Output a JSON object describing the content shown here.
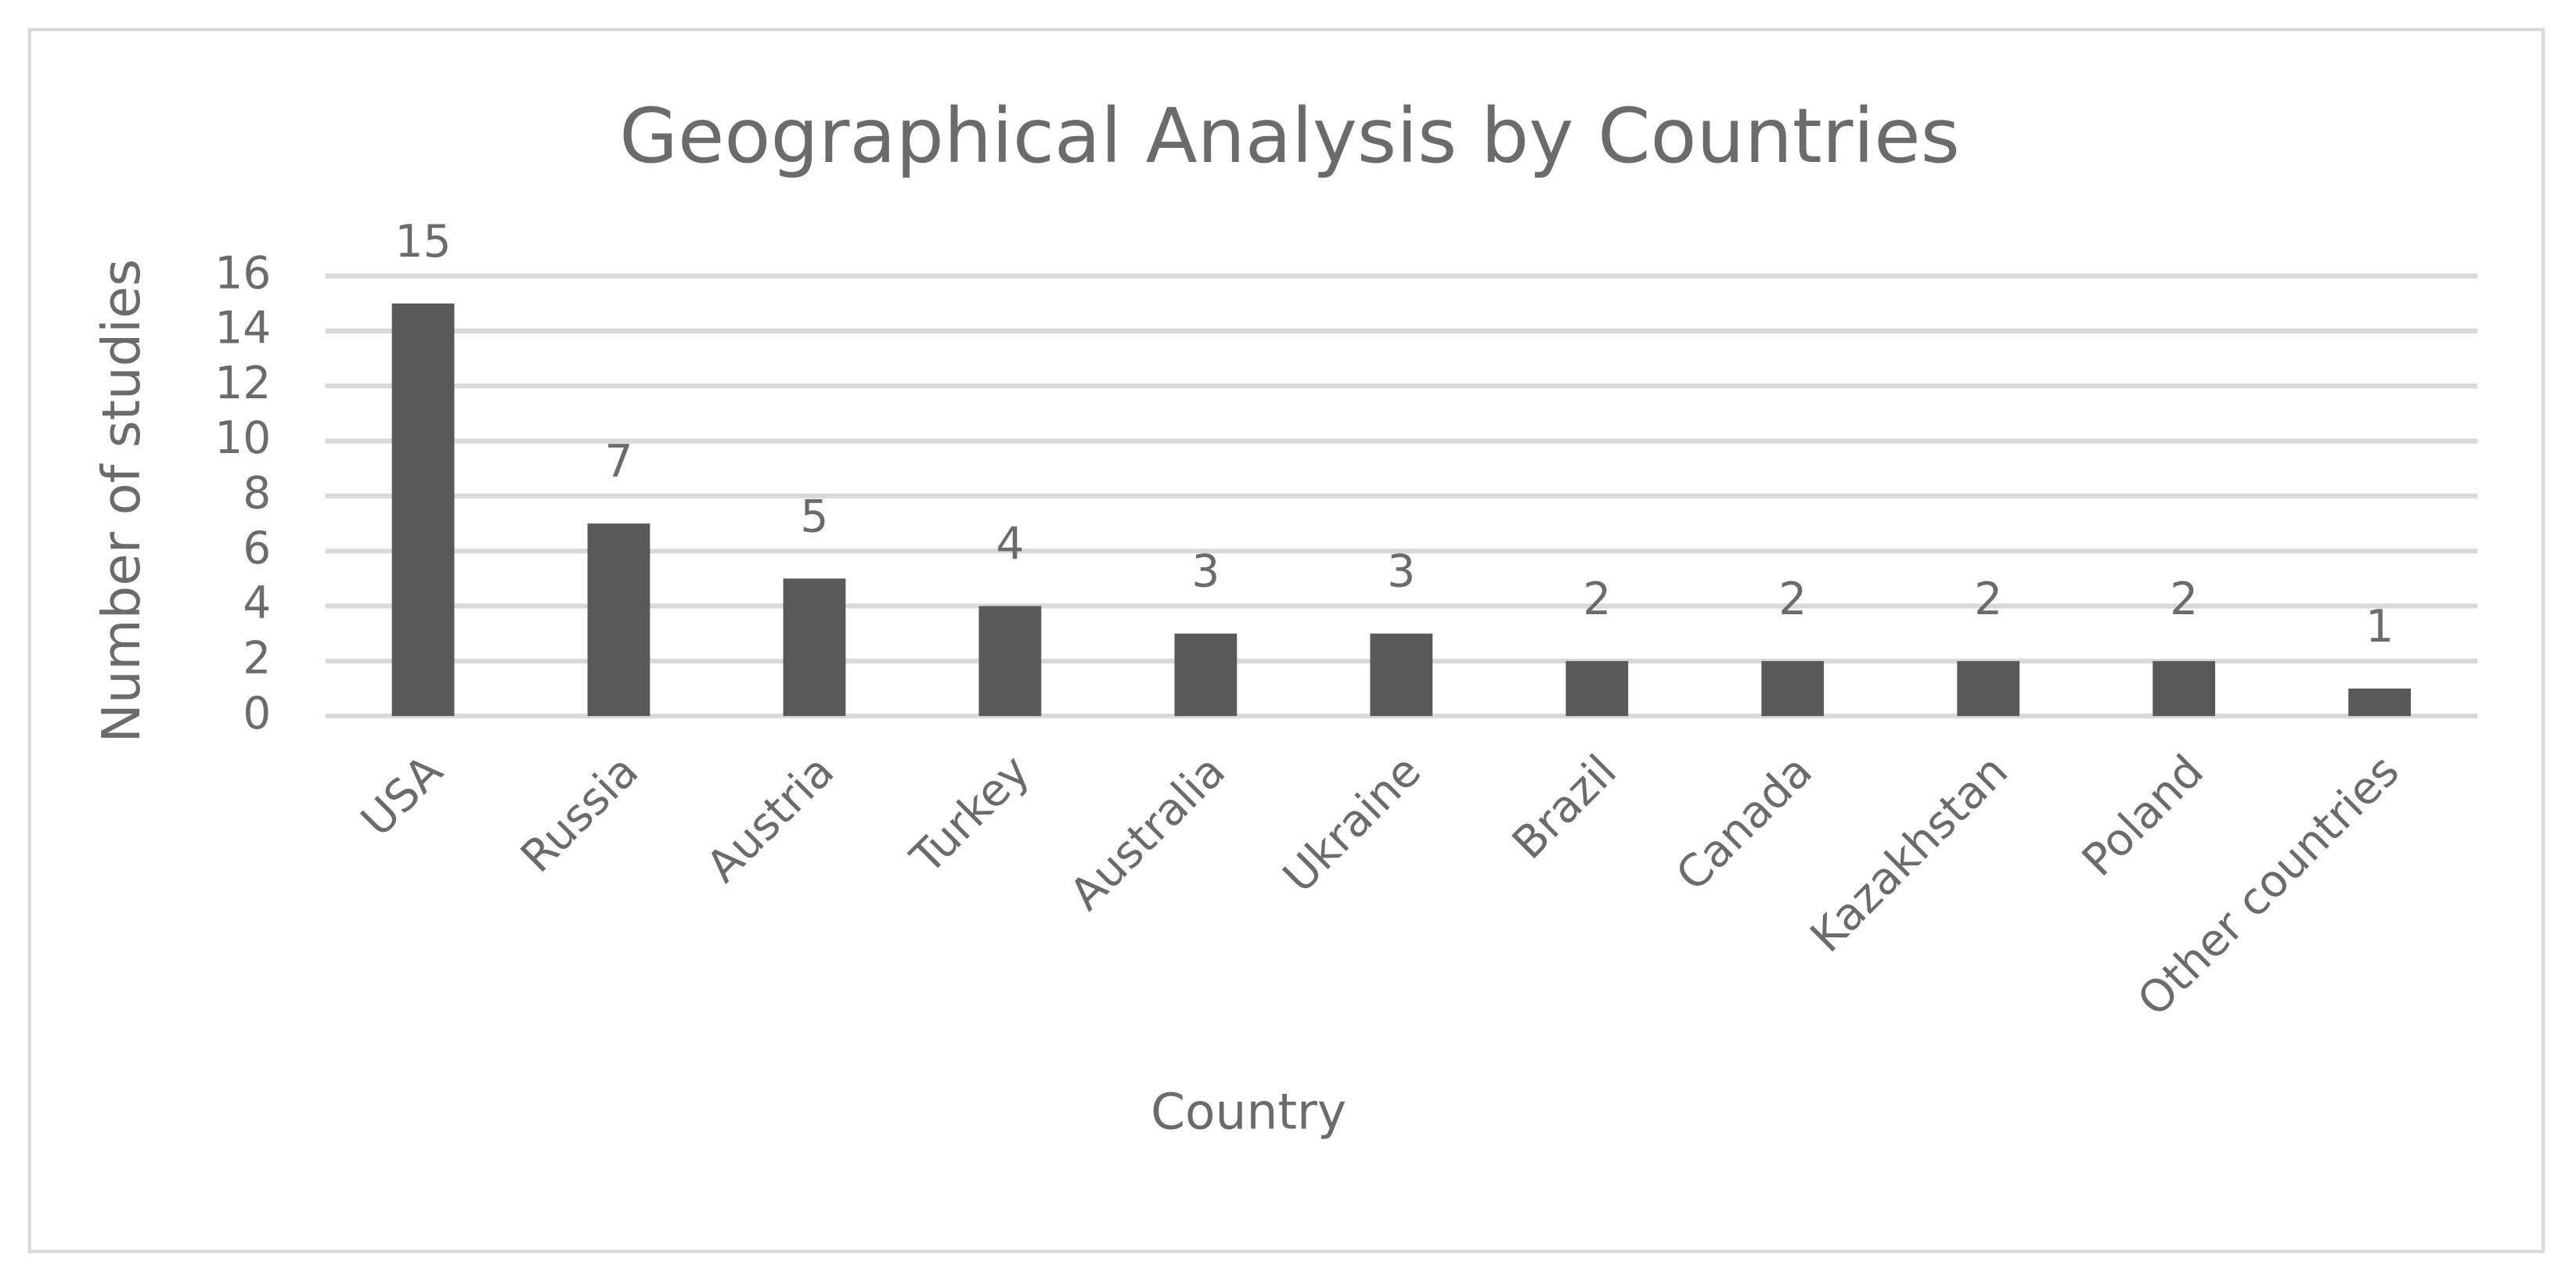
{
  "chart_data": {
    "type": "bar",
    "title": "Geographical Analysis by Countries",
    "x_label": "Country",
    "y_label": "Number of studies",
    "categories": [
      "USA",
      "Russia",
      "Austria",
      "Turkey",
      "Australia",
      "Ukraine",
      "Brazil",
      "Canada",
      "Kazakhstan",
      "Poland",
      "Other countries"
    ],
    "values": [
      15,
      7,
      5,
      4,
      3,
      3,
      2,
      2,
      2,
      2,
      1
    ],
    "color": "#595959",
    "ylim": [
      0,
      16
    ],
    "yticks": [
      0,
      2,
      4,
      6,
      8,
      10,
      12,
      14,
      16
    ],
    "grid": true
  }
}
